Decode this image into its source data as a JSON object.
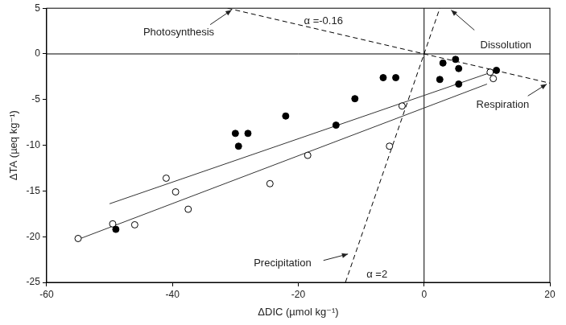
{
  "chart_data": {
    "type": "scatter",
    "xlabel": "ΔDIC (µmol kg⁻¹)",
    "ylabel": "ΔTA (µeq kg⁻¹)",
    "xlim": [
      -60,
      20
    ],
    "xticks": [
      -60,
      -40,
      -20,
      0,
      20
    ],
    "ylim": [
      -25,
      5
    ],
    "yticks": [
      -25,
      -20,
      -15,
      -10,
      -5,
      0,
      5
    ],
    "grid": false,
    "reference_lines": [
      {
        "axis": "x",
        "value": 0
      },
      {
        "axis": "y",
        "value": 0
      }
    ],
    "series": [
      {
        "type": "scatter",
        "marker": "circle",
        "color": "#000000",
        "x": [
          -49,
          -30,
          -29.5,
          -28,
          -22,
          -14,
          -11,
          -6.5,
          -4.5,
          2.5,
          3,
          5,
          5.5,
          5.5,
          11.5
        ],
        "values": [
          -19.2,
          -8.7,
          -10.1,
          -8.7,
          -6.8,
          -7.8,
          -4.9,
          -2.6,
          -2.6,
          -2.8,
          -1.0,
          -0.6,
          -1.6,
          -3.3,
          -1.8
        ]
      },
      {
        "type": "scatter",
        "marker": "open_circle",
        "color": "#000000",
        "x": [
          -55,
          -49.5,
          -46,
          -41,
          -39.5,
          -37.5,
          -24.5,
          -18.5,
          -5.5,
          -3.5,
          11,
          10.5
        ],
        "values": [
          -20.2,
          -18.6,
          -18.7,
          -13.6,
          -15.1,
          -17.0,
          -14.2,
          -11.1,
          -10.1,
          -5.7,
          -2.7,
          -2.0
        ]
      },
      {
        "type": "line",
        "line_style": "solid",
        "color": "#333333",
        "x": [
          -50,
          12
        ],
        "values": [
          -16.4,
          -1.7
        ]
      },
      {
        "type": "line",
        "line_style": "solid",
        "color": "#333333",
        "x": [
          -55,
          10
        ],
        "values": [
          -20.3,
          -3.3
        ]
      },
      {
        "type": "line",
        "line_style": "dashed",
        "color": "#000000",
        "x": [
          -31.25,
          20
        ],
        "values": [
          5,
          -3.2
        ]
      },
      {
        "type": "line",
        "line_style": "dashed",
        "color": "#000000",
        "x": [
          -12.5,
          2.5
        ],
        "values": [
          -25,
          5
        ]
      }
    ],
    "annotations": [
      {
        "text": "Photosynthesis"
      },
      {
        "text": "α =-0.16"
      },
      {
        "text": "Dissolution"
      },
      {
        "text": "Respiration"
      },
      {
        "text": "Precipitation"
      },
      {
        "text": "α =2"
      }
    ]
  }
}
